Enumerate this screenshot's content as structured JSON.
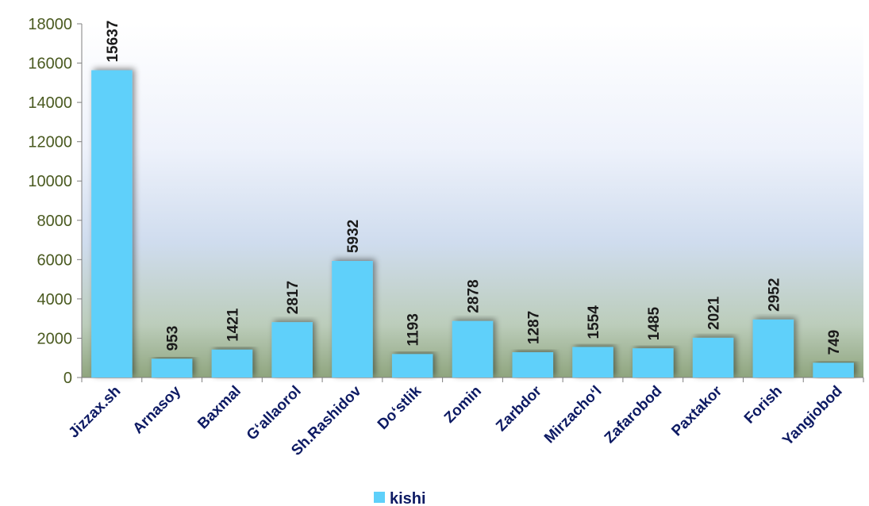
{
  "chart_data": {
    "type": "bar",
    "title": "",
    "xlabel": "",
    "ylabel": "",
    "ylim": [
      0,
      18000
    ],
    "yticks": [
      0,
      2000,
      4000,
      6000,
      8000,
      10000,
      12000,
      14000,
      16000,
      18000
    ],
    "grid": false,
    "legend_position": "bottom",
    "categories": [
      "Jizzax.sh",
      "Arnasoy",
      "Baxmal",
      "G‘allaorol",
      "Sh.Rashidov",
      "Do‘stlik",
      "Zomin",
      "Zarbdor",
      "Mirzacho‘l",
      "Zafarobod",
      "Paxtakor",
      "Forish",
      "Yangiobod"
    ],
    "series": [
      {
        "name": "kishi",
        "color": "#5ed0fa",
        "values": [
          15637,
          953,
          1421,
          2817,
          5932,
          1193,
          2878,
          1287,
          1554,
          1485,
          2021,
          2952,
          749
        ]
      }
    ]
  }
}
